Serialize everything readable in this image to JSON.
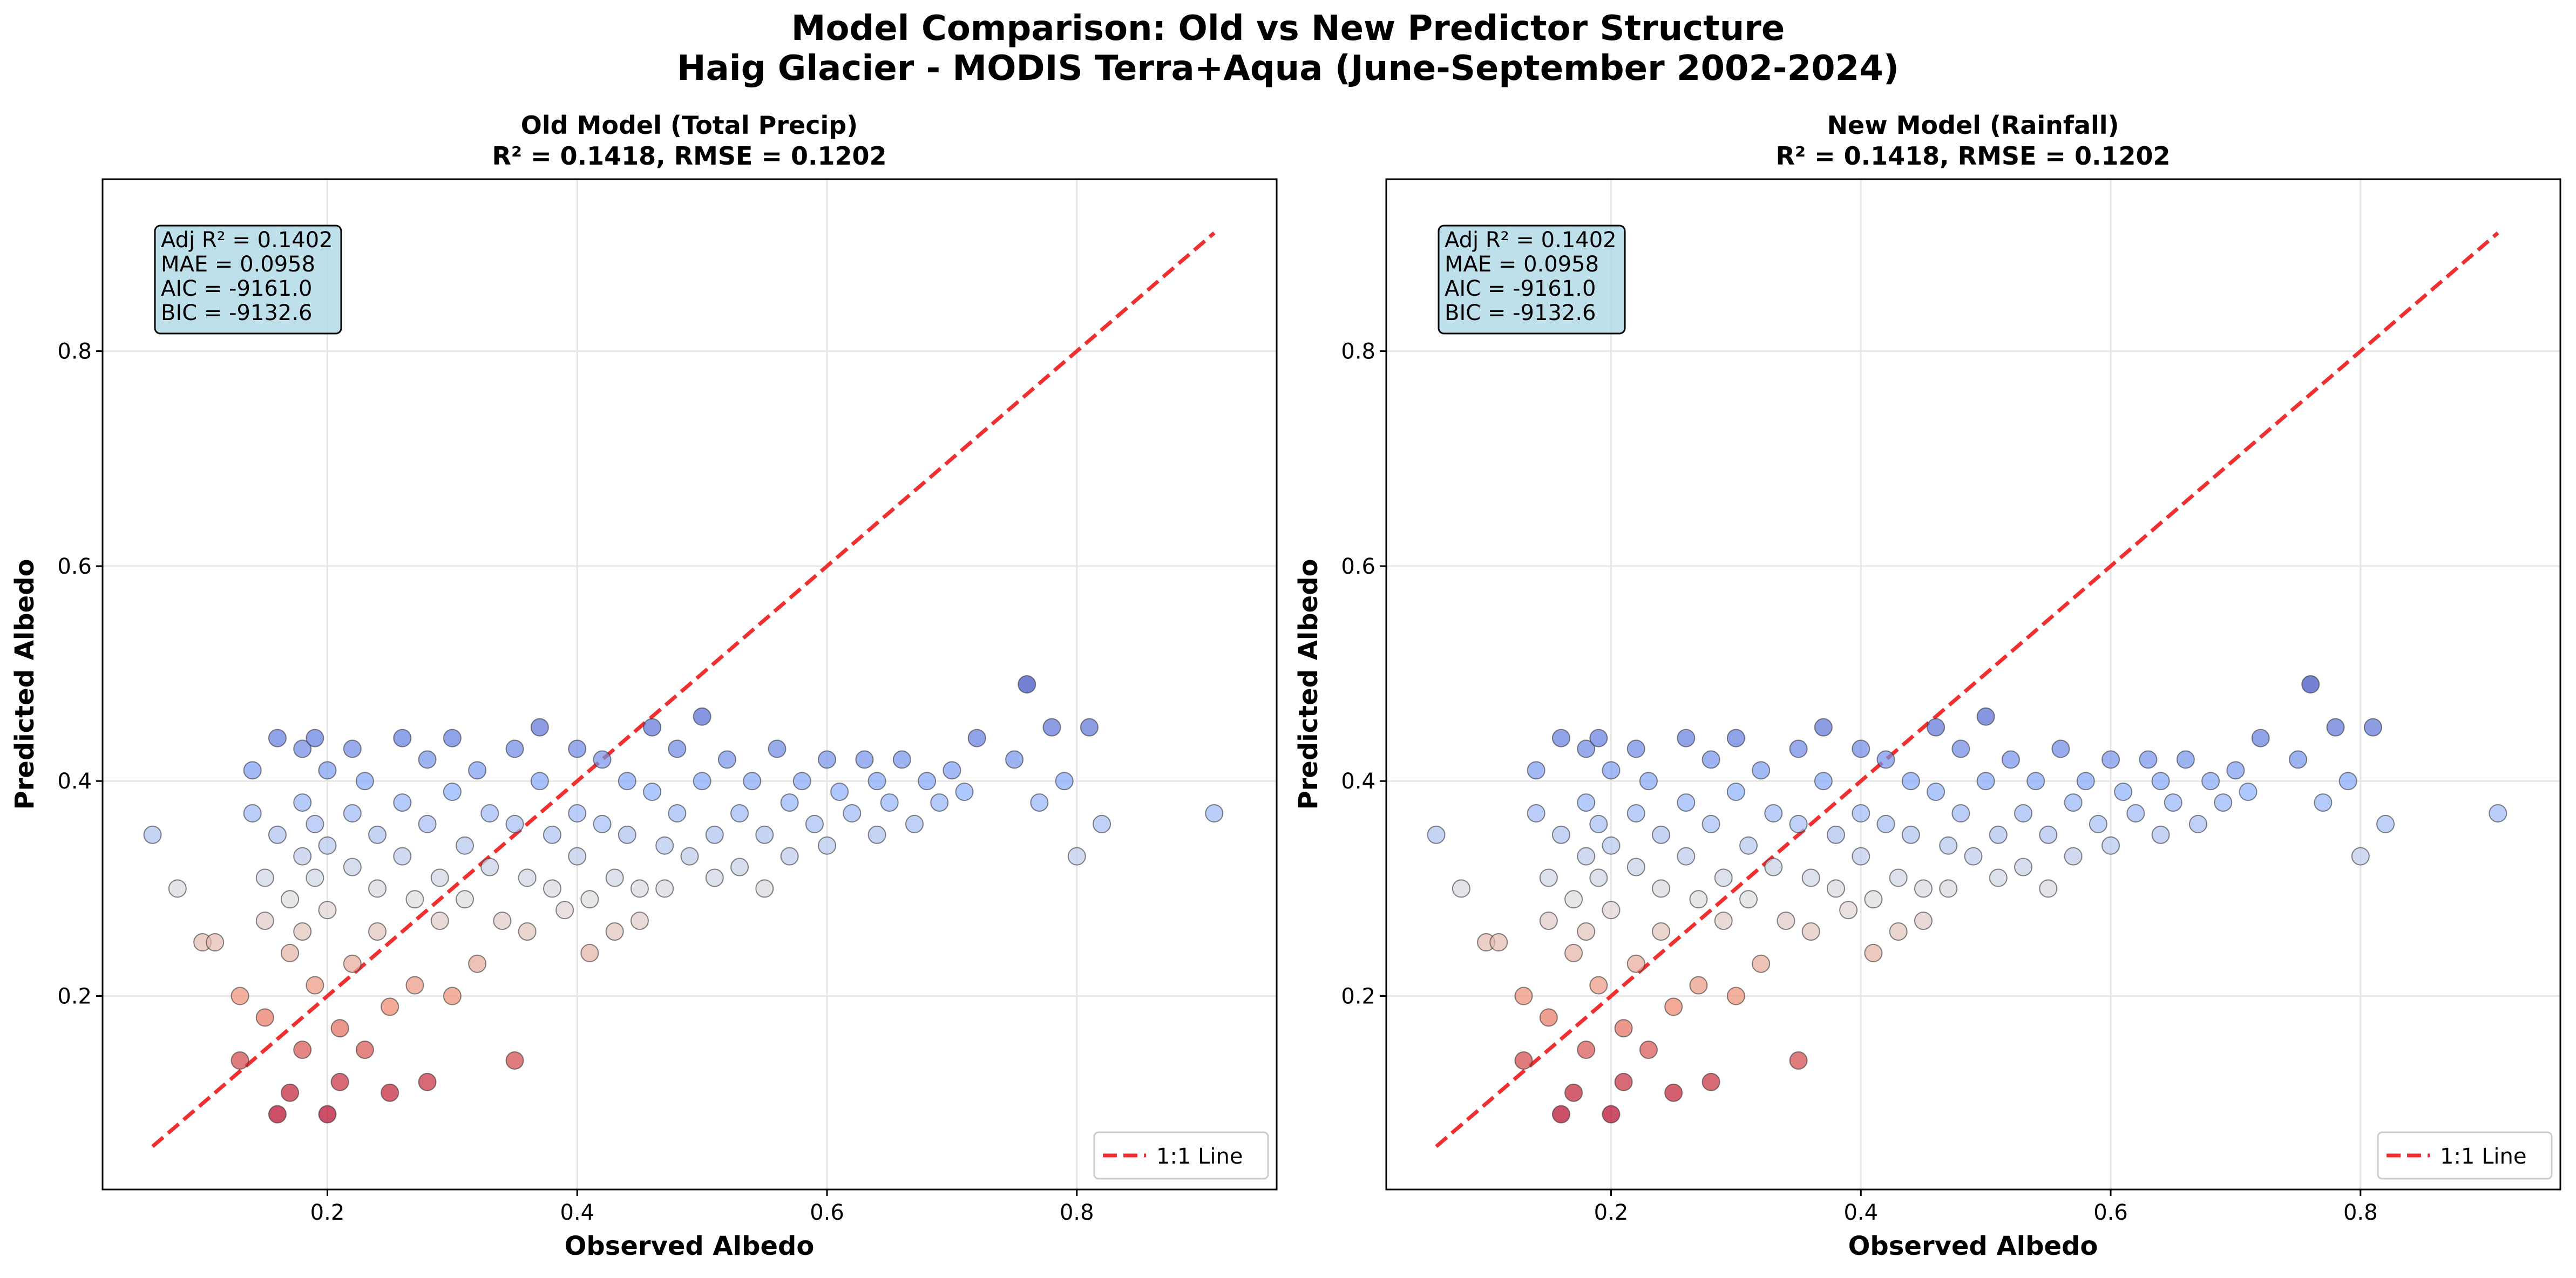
{
  "figure": {
    "title_line1": "Model Comparison: Old vs New Predictor Structure",
    "title_line2": "Haig Glacier - MODIS Terra+Aqua (June-September 2002-2024)"
  },
  "colors": {
    "identity_line": "#f03030",
    "stats_box_fill": "#add8e6",
    "low_predicted": "#b40426",
    "mid_predicted": "#dddddd",
    "high_predicted": "#3b4cc0",
    "grid": "#e6e6e6"
  },
  "chart_data": [
    {
      "type": "scatter",
      "title_line1": "Old Model (Total Precip)",
      "title_line2": "R² = 0.1418, RMSE = 0.1202",
      "xlabel": "Observed Albedo",
      "ylabel": "Predicted Albedo",
      "xlim": [
        0.02,
        0.96
      ],
      "ylim": [
        0.02,
        0.96
      ],
      "xticks": [
        0.2,
        0.4,
        0.6,
        0.8
      ],
      "yticks": [
        0.2,
        0.4,
        0.6,
        0.8
      ],
      "tick_labels": [
        "0.2",
        "0.4",
        "0.6",
        "0.8"
      ],
      "grid": true,
      "color_by": "predicted albedo (coolwarm colormap)",
      "stats_box": [
        "Adj R² = 0.1402",
        "MAE = 0.0958",
        "AIC = -9161.0",
        "BIC = -9132.6"
      ],
      "reference_line": {
        "label": "1:1 Line",
        "from": [
          0.06,
          0.06
        ],
        "to": [
          0.91,
          0.91
        ],
        "style": "dashed"
      },
      "legend_position": "lower-right",
      "points_note": "approximately 1500 observations; representative sample below",
      "points": [
        [
          0.06,
          0.35
        ],
        [
          0.08,
          0.3
        ],
        [
          0.1,
          0.25
        ],
        [
          0.11,
          0.25
        ],
        [
          0.13,
          0.2
        ],
        [
          0.13,
          0.14
        ],
        [
          0.14,
          0.41
        ],
        [
          0.14,
          0.37
        ],
        [
          0.15,
          0.31
        ],
        [
          0.15,
          0.27
        ],
        [
          0.15,
          0.18
        ],
        [
          0.16,
          0.09
        ],
        [
          0.16,
          0.44
        ],
        [
          0.16,
          0.35
        ],
        [
          0.17,
          0.29
        ],
        [
          0.17,
          0.24
        ],
        [
          0.17,
          0.11
        ],
        [
          0.18,
          0.43
        ],
        [
          0.18,
          0.38
        ],
        [
          0.18,
          0.33
        ],
        [
          0.18,
          0.26
        ],
        [
          0.18,
          0.15
        ],
        [
          0.19,
          0.44
        ],
        [
          0.19,
          0.36
        ],
        [
          0.19,
          0.31
        ],
        [
          0.19,
          0.21
        ],
        [
          0.2,
          0.09
        ],
        [
          0.2,
          0.41
        ],
        [
          0.2,
          0.34
        ],
        [
          0.2,
          0.28
        ],
        [
          0.21,
          0.17
        ],
        [
          0.21,
          0.12
        ],
        [
          0.22,
          0.43
        ],
        [
          0.22,
          0.37
        ],
        [
          0.22,
          0.32
        ],
        [
          0.22,
          0.23
        ],
        [
          0.23,
          0.15
        ],
        [
          0.23,
          0.4
        ],
        [
          0.24,
          0.35
        ],
        [
          0.24,
          0.3
        ],
        [
          0.24,
          0.26
        ],
        [
          0.25,
          0.19
        ],
        [
          0.25,
          0.11
        ],
        [
          0.26,
          0.44
        ],
        [
          0.26,
          0.38
        ],
        [
          0.26,
          0.33
        ],
        [
          0.27,
          0.29
        ],
        [
          0.27,
          0.21
        ],
        [
          0.28,
          0.12
        ],
        [
          0.28,
          0.42
        ],
        [
          0.28,
          0.36
        ],
        [
          0.29,
          0.31
        ],
        [
          0.29,
          0.27
        ],
        [
          0.3,
          0.2
        ],
        [
          0.3,
          0.44
        ],
        [
          0.3,
          0.39
        ],
        [
          0.31,
          0.34
        ],
        [
          0.31,
          0.29
        ],
        [
          0.32,
          0.23
        ],
        [
          0.32,
          0.41
        ],
        [
          0.33,
          0.37
        ],
        [
          0.33,
          0.32
        ],
        [
          0.34,
          0.27
        ],
        [
          0.35,
          0.14
        ],
        [
          0.35,
          0.43
        ],
        [
          0.35,
          0.36
        ],
        [
          0.36,
          0.31
        ],
        [
          0.36,
          0.26
        ],
        [
          0.37,
          0.45
        ],
        [
          0.37,
          0.4
        ],
        [
          0.38,
          0.35
        ],
        [
          0.38,
          0.3
        ],
        [
          0.39,
          0.28
        ],
        [
          0.4,
          0.43
        ],
        [
          0.4,
          0.37
        ],
        [
          0.4,
          0.33
        ],
        [
          0.41,
          0.29
        ],
        [
          0.41,
          0.24
        ],
        [
          0.42,
          0.42
        ],
        [
          0.42,
          0.36
        ],
        [
          0.43,
          0.31
        ],
        [
          0.43,
          0.26
        ],
        [
          0.44,
          0.4
        ],
        [
          0.44,
          0.35
        ],
        [
          0.45,
          0.3
        ],
        [
          0.45,
          0.27
        ],
        [
          0.46,
          0.45
        ],
        [
          0.46,
          0.39
        ],
        [
          0.47,
          0.34
        ],
        [
          0.47,
          0.3
        ],
        [
          0.48,
          0.43
        ],
        [
          0.48,
          0.37
        ],
        [
          0.49,
          0.33
        ],
        [
          0.5,
          0.46
        ],
        [
          0.5,
          0.4
        ],
        [
          0.51,
          0.35
        ],
        [
          0.51,
          0.31
        ],
        [
          0.52,
          0.42
        ],
        [
          0.53,
          0.37
        ],
        [
          0.53,
          0.32
        ],
        [
          0.54,
          0.4
        ],
        [
          0.55,
          0.35
        ],
        [
          0.55,
          0.3
        ],
        [
          0.56,
          0.43
        ],
        [
          0.57,
          0.38
        ],
        [
          0.57,
          0.33
        ],
        [
          0.58,
          0.4
        ],
        [
          0.59,
          0.36
        ],
        [
          0.6,
          0.42
        ],
        [
          0.6,
          0.34
        ],
        [
          0.61,
          0.39
        ],
        [
          0.62,
          0.37
        ],
        [
          0.63,
          0.42
        ],
        [
          0.64,
          0.35
        ],
        [
          0.64,
          0.4
        ],
        [
          0.65,
          0.38
        ],
        [
          0.66,
          0.42
        ],
        [
          0.67,
          0.36
        ],
        [
          0.68,
          0.4
        ],
        [
          0.69,
          0.38
        ],
        [
          0.7,
          0.41
        ],
        [
          0.71,
          0.39
        ],
        [
          0.72,
          0.44
        ],
        [
          0.75,
          0.42
        ],
        [
          0.76,
          0.49
        ],
        [
          0.77,
          0.38
        ],
        [
          0.78,
          0.45
        ],
        [
          0.79,
          0.4
        ],
        [
          0.8,
          0.33
        ],
        [
          0.81,
          0.45
        ],
        [
          0.82,
          0.36
        ],
        [
          0.91,
          0.37
        ]
      ]
    },
    {
      "type": "scatter",
      "title_line1": "New Model (Rainfall)",
      "title_line2": "R² = 0.1418, RMSE = 0.1202",
      "xlabel": "Observed Albedo",
      "ylabel": "Predicted Albedo",
      "xlim": [
        0.02,
        0.96
      ],
      "ylim": [
        0.02,
        0.96
      ],
      "xticks": [
        0.2,
        0.4,
        0.6,
        0.8
      ],
      "yticks": [
        0.2,
        0.4,
        0.6,
        0.8
      ],
      "tick_labels": [
        "0.2",
        "0.4",
        "0.6",
        "0.8"
      ],
      "grid": true,
      "color_by": "predicted albedo (coolwarm colormap)",
      "stats_box": [
        "Adj R² = 0.1402",
        "MAE = 0.0958",
        "AIC = -9161.0",
        "BIC = -9132.6"
      ],
      "reference_line": {
        "label": "1:1 Line",
        "from": [
          0.06,
          0.06
        ],
        "to": [
          0.91,
          0.91
        ],
        "style": "dashed"
      },
      "legend_position": "lower-right",
      "points_note": "approximately 1500 observations; representative sample below",
      "points": [
        [
          0.06,
          0.35
        ],
        [
          0.08,
          0.3
        ],
        [
          0.1,
          0.25
        ],
        [
          0.11,
          0.25
        ],
        [
          0.13,
          0.2
        ],
        [
          0.13,
          0.14
        ],
        [
          0.14,
          0.41
        ],
        [
          0.14,
          0.37
        ],
        [
          0.15,
          0.31
        ],
        [
          0.15,
          0.27
        ],
        [
          0.15,
          0.18
        ],
        [
          0.16,
          0.09
        ],
        [
          0.16,
          0.44
        ],
        [
          0.16,
          0.35
        ],
        [
          0.17,
          0.29
        ],
        [
          0.17,
          0.24
        ],
        [
          0.17,
          0.11
        ],
        [
          0.18,
          0.43
        ],
        [
          0.18,
          0.38
        ],
        [
          0.18,
          0.33
        ],
        [
          0.18,
          0.26
        ],
        [
          0.18,
          0.15
        ],
        [
          0.19,
          0.44
        ],
        [
          0.19,
          0.36
        ],
        [
          0.19,
          0.31
        ],
        [
          0.19,
          0.21
        ],
        [
          0.2,
          0.09
        ],
        [
          0.2,
          0.41
        ],
        [
          0.2,
          0.34
        ],
        [
          0.2,
          0.28
        ],
        [
          0.21,
          0.17
        ],
        [
          0.21,
          0.12
        ],
        [
          0.22,
          0.43
        ],
        [
          0.22,
          0.37
        ],
        [
          0.22,
          0.32
        ],
        [
          0.22,
          0.23
        ],
        [
          0.23,
          0.15
        ],
        [
          0.23,
          0.4
        ],
        [
          0.24,
          0.35
        ],
        [
          0.24,
          0.3
        ],
        [
          0.24,
          0.26
        ],
        [
          0.25,
          0.19
        ],
        [
          0.25,
          0.11
        ],
        [
          0.26,
          0.44
        ],
        [
          0.26,
          0.38
        ],
        [
          0.26,
          0.33
        ],
        [
          0.27,
          0.29
        ],
        [
          0.27,
          0.21
        ],
        [
          0.28,
          0.12
        ],
        [
          0.28,
          0.42
        ],
        [
          0.28,
          0.36
        ],
        [
          0.29,
          0.31
        ],
        [
          0.29,
          0.27
        ],
        [
          0.3,
          0.2
        ],
        [
          0.3,
          0.44
        ],
        [
          0.3,
          0.39
        ],
        [
          0.31,
          0.34
        ],
        [
          0.31,
          0.29
        ],
        [
          0.32,
          0.23
        ],
        [
          0.32,
          0.41
        ],
        [
          0.33,
          0.37
        ],
        [
          0.33,
          0.32
        ],
        [
          0.34,
          0.27
        ],
        [
          0.35,
          0.14
        ],
        [
          0.35,
          0.43
        ],
        [
          0.35,
          0.36
        ],
        [
          0.36,
          0.31
        ],
        [
          0.36,
          0.26
        ],
        [
          0.37,
          0.45
        ],
        [
          0.37,
          0.4
        ],
        [
          0.38,
          0.35
        ],
        [
          0.38,
          0.3
        ],
        [
          0.39,
          0.28
        ],
        [
          0.4,
          0.43
        ],
        [
          0.4,
          0.37
        ],
        [
          0.4,
          0.33
        ],
        [
          0.41,
          0.29
        ],
        [
          0.41,
          0.24
        ],
        [
          0.42,
          0.42
        ],
        [
          0.42,
          0.36
        ],
        [
          0.43,
          0.31
        ],
        [
          0.43,
          0.26
        ],
        [
          0.44,
          0.4
        ],
        [
          0.44,
          0.35
        ],
        [
          0.45,
          0.3
        ],
        [
          0.45,
          0.27
        ],
        [
          0.46,
          0.45
        ],
        [
          0.46,
          0.39
        ],
        [
          0.47,
          0.34
        ],
        [
          0.47,
          0.3
        ],
        [
          0.48,
          0.43
        ],
        [
          0.48,
          0.37
        ],
        [
          0.49,
          0.33
        ],
        [
          0.5,
          0.46
        ],
        [
          0.5,
          0.4
        ],
        [
          0.51,
          0.35
        ],
        [
          0.51,
          0.31
        ],
        [
          0.52,
          0.42
        ],
        [
          0.53,
          0.37
        ],
        [
          0.53,
          0.32
        ],
        [
          0.54,
          0.4
        ],
        [
          0.55,
          0.35
        ],
        [
          0.55,
          0.3
        ],
        [
          0.56,
          0.43
        ],
        [
          0.57,
          0.38
        ],
        [
          0.57,
          0.33
        ],
        [
          0.58,
          0.4
        ],
        [
          0.59,
          0.36
        ],
        [
          0.6,
          0.42
        ],
        [
          0.6,
          0.34
        ],
        [
          0.61,
          0.39
        ],
        [
          0.62,
          0.37
        ],
        [
          0.63,
          0.42
        ],
        [
          0.64,
          0.35
        ],
        [
          0.64,
          0.4
        ],
        [
          0.65,
          0.38
        ],
        [
          0.66,
          0.42
        ],
        [
          0.67,
          0.36
        ],
        [
          0.68,
          0.4
        ],
        [
          0.69,
          0.38
        ],
        [
          0.7,
          0.41
        ],
        [
          0.71,
          0.39
        ],
        [
          0.72,
          0.44
        ],
        [
          0.75,
          0.42
        ],
        [
          0.76,
          0.49
        ],
        [
          0.77,
          0.38
        ],
        [
          0.78,
          0.45
        ],
        [
          0.79,
          0.4
        ],
        [
          0.8,
          0.33
        ],
        [
          0.81,
          0.45
        ],
        [
          0.82,
          0.36
        ],
        [
          0.91,
          0.37
        ]
      ]
    }
  ]
}
